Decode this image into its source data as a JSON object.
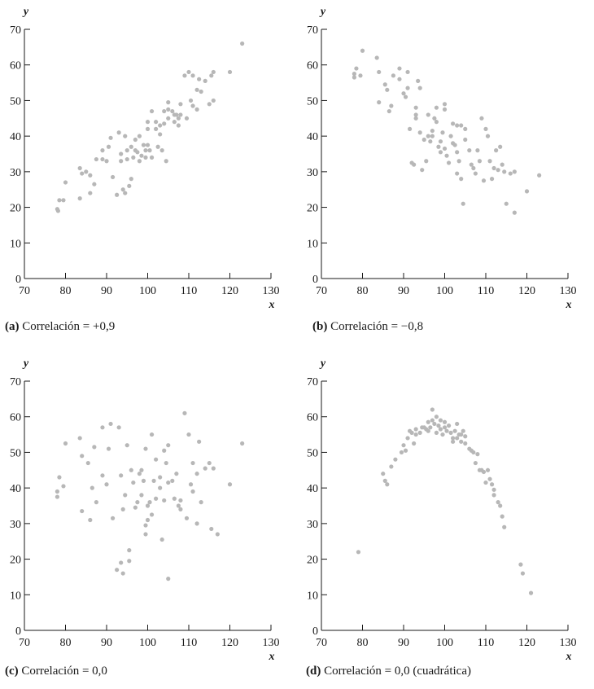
{
  "chart_data": [
    {
      "type": "scatter",
      "caption_label": "(a)",
      "caption_text": "Correlación = +0,9",
      "xlabel": "x",
      "ylabel": "y",
      "xlim": [
        70,
        130
      ],
      "ylim": [
        0,
        70
      ],
      "xticks": [
        70,
        80,
        90,
        100,
        110,
        120,
        130
      ],
      "yticks": [
        0,
        10,
        20,
        30,
        40,
        50,
        60,
        70
      ],
      "points": [
        [
          78,
          19.5
        ],
        [
          78.2,
          19
        ],
        [
          78.5,
          22
        ],
        [
          79.5,
          22
        ],
        [
          80,
          27
        ],
        [
          83.5,
          31
        ],
        [
          84,
          29.5
        ],
        [
          83.5,
          22.5
        ],
        [
          85,
          30
        ],
        [
          86,
          29
        ],
        [
          86,
          24
        ],
        [
          87,
          26.5
        ],
        [
          87.5,
          33.5
        ],
        [
          89,
          36
        ],
        [
          89,
          33.5
        ],
        [
          90,
          33
        ],
        [
          90.5,
          37
        ],
        [
          91,
          39.5
        ],
        [
          91.5,
          28.5
        ],
        [
          92.5,
          23.5
        ],
        [
          93,
          41
        ],
        [
          93.5,
          35
        ],
        [
          93.5,
          33
        ],
        [
          94,
          25
        ],
        [
          94.5,
          24
        ],
        [
          94.5,
          40
        ],
        [
          95,
          36
        ],
        [
          95,
          33.5
        ],
        [
          95.5,
          26
        ],
        [
          96,
          28
        ],
        [
          96,
          37
        ],
        [
          96.5,
          34
        ],
        [
          97,
          39
        ],
        [
          97,
          36
        ],
        [
          97.5,
          35.5
        ],
        [
          98,
          33
        ],
        [
          98,
          40
        ],
        [
          98.5,
          34.5
        ],
        [
          99,
          37.5
        ],
        [
          99.5,
          34
        ],
        [
          99.5,
          36
        ],
        [
          100,
          44
        ],
        [
          100,
          42
        ],
        [
          100,
          37.5
        ],
        [
          100.5,
          36
        ],
        [
          101,
          47
        ],
        [
          101,
          34
        ],
        [
          102,
          44
        ],
        [
          102,
          42
        ],
        [
          102.5,
          37
        ],
        [
          103,
          43
        ],
        [
          103,
          40.5
        ],
        [
          103.5,
          36
        ],
        [
          104,
          47
        ],
        [
          104,
          43.5
        ],
        [
          104.5,
          33
        ],
        [
          105,
          47.5
        ],
        [
          105,
          45
        ],
        [
          105,
          49.5
        ],
        [
          106,
          47
        ],
        [
          106.5,
          46
        ],
        [
          106.5,
          44
        ],
        [
          107,
          46
        ],
        [
          107.5,
          45
        ],
        [
          107.5,
          43
        ],
        [
          108,
          49
        ],
        [
          108,
          46
        ],
        [
          109,
          57
        ],
        [
          109.5,
          45
        ],
        [
          110,
          58
        ],
        [
          110.5,
          50
        ],
        [
          111,
          48.5
        ],
        [
          111,
          57
        ],
        [
          112,
          53
        ],
        [
          112.5,
          56
        ],
        [
          112,
          47.5
        ],
        [
          113,
          52.5
        ],
        [
          114,
          55.5
        ],
        [
          115,
          49
        ],
        [
          115.5,
          57
        ],
        [
          116,
          50
        ],
        [
          116,
          58
        ],
        [
          120,
          58
        ],
        [
          123,
          66
        ]
      ]
    },
    {
      "type": "scatter",
      "caption_label": "(b)",
      "caption_text": "Correlación = −0,8",
      "xlabel": "x",
      "ylabel": "y",
      "xlim": [
        70,
        130
      ],
      "ylim": [
        0,
        70
      ],
      "xticks": [
        70,
        80,
        90,
        100,
        110,
        120,
        130
      ],
      "yticks": [
        0,
        10,
        20,
        30,
        40,
        50,
        60,
        70
      ],
      "points": [
        [
          78,
          57.5
        ],
        [
          78,
          56.5
        ],
        [
          78.5,
          59
        ],
        [
          79.5,
          57
        ],
        [
          80,
          64
        ],
        [
          83.5,
          62
        ],
        [
          84,
          58
        ],
        [
          84,
          49.5
        ],
        [
          85.5,
          54.5
        ],
        [
          86,
          53
        ],
        [
          86.5,
          47
        ],
        [
          87,
          48.5
        ],
        [
          87.5,
          57
        ],
        [
          89,
          59
        ],
        [
          89,
          56
        ],
        [
          90,
          52
        ],
        [
          90.5,
          51
        ],
        [
          91,
          58
        ],
        [
          91,
          53.5
        ],
        [
          91.5,
          42
        ],
        [
          92,
          32.5
        ],
        [
          92.5,
          32
        ],
        [
          93,
          46
        ],
        [
          93,
          48
        ],
        [
          93,
          45
        ],
        [
          93.5,
          55.5
        ],
        [
          94,
          53.5
        ],
        [
          94,
          41
        ],
        [
          94.5,
          30.5
        ],
        [
          95,
          39
        ],
        [
          95.5,
          33
        ],
        [
          96,
          46
        ],
        [
          96,
          40
        ],
        [
          96.5,
          38.5
        ],
        [
          97,
          41.5
        ],
        [
          97,
          40
        ],
        [
          97.5,
          45
        ],
        [
          98,
          44
        ],
        [
          98,
          48
        ],
        [
          98.5,
          37
        ],
        [
          99,
          38.5
        ],
        [
          99,
          35.5
        ],
        [
          99.5,
          41
        ],
        [
          100,
          47.5
        ],
        [
          100,
          49
        ],
        [
          100,
          36.5
        ],
        [
          100.5,
          34.5
        ],
        [
          101,
          32.5
        ],
        [
          101.5,
          40
        ],
        [
          102,
          38
        ],
        [
          102,
          43.5
        ],
        [
          102.5,
          37.5
        ],
        [
          103,
          35.5
        ],
        [
          103,
          43
        ],
        [
          103.5,
          33
        ],
        [
          103,
          29.5
        ],
        [
          104,
          28
        ],
        [
          104,
          43
        ],
        [
          104.5,
          21
        ],
        [
          105,
          42
        ],
        [
          105,
          39
        ],
        [
          106,
          36
        ],
        [
          106.5,
          32
        ],
        [
          107,
          31
        ],
        [
          107.5,
          29.5
        ],
        [
          108,
          36
        ],
        [
          108.5,
          33
        ],
        [
          109,
          45
        ],
        [
          109.5,
          27.5
        ],
        [
          110,
          42
        ],
        [
          110.5,
          40
        ],
        [
          111,
          33
        ],
        [
          111.5,
          28
        ],
        [
          112,
          31
        ],
        [
          112.5,
          36
        ],
        [
          113,
          30.5
        ],
        [
          113.5,
          37
        ],
        [
          114,
          32
        ],
        [
          114.5,
          30
        ],
        [
          115,
          21
        ],
        [
          116,
          29.5
        ],
        [
          117,
          30
        ],
        [
          117,
          18.5
        ],
        [
          120,
          24.5
        ],
        [
          123,
          29
        ]
      ]
    },
    {
      "type": "scatter",
      "caption_label": "(c)",
      "caption_text": "Correlación = 0,0",
      "xlabel": "x",
      "ylabel": "y",
      "xlim": [
        70,
        130
      ],
      "ylim": [
        0,
        70
      ],
      "xticks": [
        70,
        80,
        90,
        100,
        110,
        120,
        130
      ],
      "yticks": [
        0,
        10,
        20,
        30,
        40,
        50,
        60,
        70
      ],
      "points": [
        [
          78,
          39
        ],
        [
          78,
          37.5
        ],
        [
          78.5,
          43
        ],
        [
          79.5,
          40.5
        ],
        [
          80,
          52.5
        ],
        [
          83.5,
          54
        ],
        [
          84,
          33.5
        ],
        [
          84,
          49
        ],
        [
          85.5,
          47
        ],
        [
          86,
          31
        ],
        [
          86.5,
          40
        ],
        [
          87,
          51.5
        ],
        [
          87.5,
          36
        ],
        [
          89,
          57
        ],
        [
          89,
          43.5
        ],
        [
          90,
          41
        ],
        [
          90.5,
          51
        ],
        [
          91,
          58
        ],
        [
          91.5,
          31.5
        ],
        [
          92.5,
          17
        ],
        [
          93,
          57
        ],
        [
          93.5,
          43.5
        ],
        [
          93.5,
          19
        ],
        [
          94,
          16
        ],
        [
          94,
          34
        ],
        [
          94.5,
          38
        ],
        [
          95,
          52
        ],
        [
          95.5,
          22.5
        ],
        [
          95.5,
          19.5
        ],
        [
          96,
          45
        ],
        [
          96.5,
          41.5
        ],
        [
          97,
          34.5
        ],
        [
          97.5,
          36
        ],
        [
          98,
          44
        ],
        [
          98.5,
          45
        ],
        [
          98.5,
          38
        ],
        [
          99,
          42
        ],
        [
          99.5,
          51
        ],
        [
          99.5,
          29.5
        ],
        [
          99.5,
          27
        ],
        [
          100,
          35
        ],
        [
          100,
          31
        ],
        [
          100.5,
          36
        ],
        [
          101,
          32.5
        ],
        [
          101,
          55
        ],
        [
          101.5,
          42
        ],
        [
          102,
          48
        ],
        [
          102,
          37
        ],
        [
          103,
          43
        ],
        [
          103,
          40
        ],
        [
          103.5,
          25.5
        ],
        [
          104,
          36.5
        ],
        [
          104,
          50.5
        ],
        [
          104.5,
          47
        ],
        [
          105,
          52
        ],
        [
          105,
          41.5
        ],
        [
          105,
          14.5
        ],
        [
          106,
          42
        ],
        [
          106.5,
          37
        ],
        [
          107,
          44
        ],
        [
          107.5,
          35
        ],
        [
          108,
          34
        ],
        [
          108,
          36.5
        ],
        [
          109,
          61
        ],
        [
          109.5,
          31.5
        ],
        [
          110,
          55
        ],
        [
          110.5,
          41
        ],
        [
          111,
          39
        ],
        [
          111,
          47
        ],
        [
          112,
          44
        ],
        [
          112.5,
          53
        ],
        [
          112,
          30
        ],
        [
          113,
          36
        ],
        [
          114,
          45.5
        ],
        [
          115,
          47
        ],
        [
          115.5,
          28.5
        ],
        [
          116,
          45.5
        ],
        [
          117,
          27
        ],
        [
          120,
          41
        ],
        [
          123,
          52.5
        ]
      ]
    },
    {
      "type": "scatter",
      "caption_label": "(d)",
      "caption_text": "Correlación = 0,0 (cuadrática)",
      "xlabel": "x",
      "ylabel": "y",
      "xlim": [
        70,
        130
      ],
      "ylim": [
        0,
        70
      ],
      "xticks": [
        70,
        80,
        90,
        100,
        110,
        120,
        130
      ],
      "yticks": [
        0,
        10,
        20,
        30,
        40,
        50,
        60,
        70
      ],
      "points": [
        [
          79,
          22
        ],
        [
          85,
          44
        ],
        [
          85.5,
          42
        ],
        [
          86,
          41
        ],
        [
          87,
          46
        ],
        [
          88,
          48
        ],
        [
          89.5,
          50
        ],
        [
          90,
          52
        ],
        [
          90.5,
          50.5
        ],
        [
          91,
          54
        ],
        [
          91.5,
          56
        ],
        [
          92,
          55.5
        ],
        [
          92.5,
          52.5
        ],
        [
          93,
          56.5
        ],
        [
          93,
          55
        ],
        [
          94,
          55.5
        ],
        [
          94.5,
          57
        ],
        [
          95,
          57
        ],
        [
          95.5,
          56.5
        ],
        [
          96,
          56
        ],
        [
          96,
          58.5
        ],
        [
          96.5,
          57
        ],
        [
          97,
          62
        ],
        [
          97,
          59
        ],
        [
          97.5,
          58
        ],
        [
          98,
          60
        ],
        [
          98,
          55.5
        ],
        [
          98.5,
          57.5
        ],
        [
          99,
          56.5
        ],
        [
          99,
          59
        ],
        [
          99.5,
          55
        ],
        [
          100,
          57
        ],
        [
          100,
          58.5
        ],
        [
          100.5,
          56
        ],
        [
          101,
          57.5
        ],
        [
          101.5,
          55.5
        ],
        [
          102,
          54
        ],
        [
          102,
          53
        ],
        [
          102.5,
          56
        ],
        [
          103,
          58
        ],
        [
          103,
          54
        ],
        [
          103.5,
          55
        ],
        [
          104,
          53
        ],
        [
          104,
          55
        ],
        [
          104.5,
          56
        ],
        [
          105,
          54.5
        ],
        [
          105,
          52.5
        ],
        [
          106,
          51
        ],
        [
          106.5,
          50.5
        ],
        [
          107,
          50
        ],
        [
          107.5,
          47
        ],
        [
          108,
          49.5
        ],
        [
          108.5,
          45
        ],
        [
          109,
          45
        ],
        [
          109.5,
          44.5
        ],
        [
          110,
          41.5
        ],
        [
          110.5,
          45
        ],
        [
          111,
          42.5
        ],
        [
          111.5,
          41
        ],
        [
          112,
          38
        ],
        [
          112,
          39.5
        ],
        [
          113,
          36
        ],
        [
          113.5,
          35
        ],
        [
          114,
          32
        ],
        [
          114.5,
          29
        ],
        [
          118.5,
          18.5
        ],
        [
          119,
          16
        ],
        [
          121,
          10.5
        ]
      ]
    }
  ]
}
